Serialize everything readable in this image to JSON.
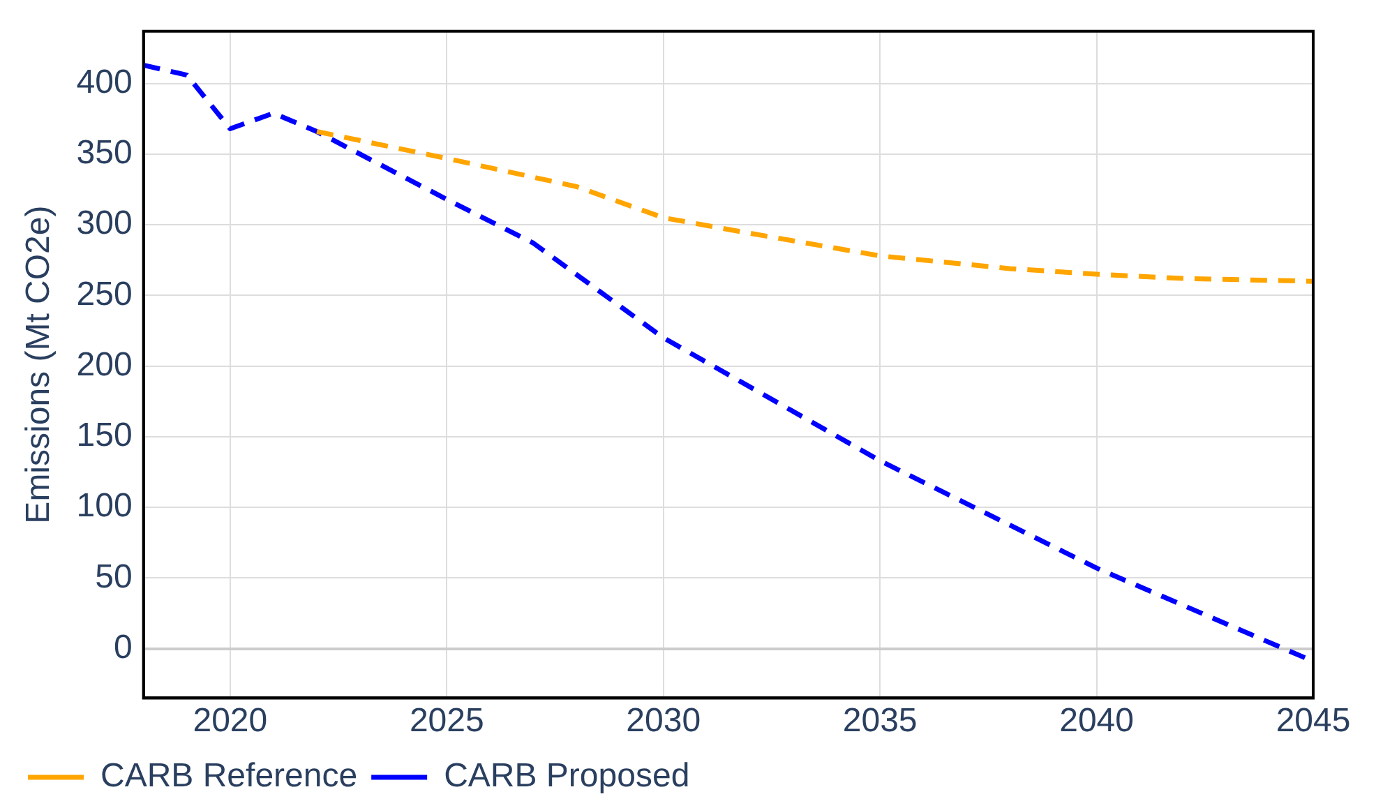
{
  "chart_data": {
    "type": "line",
    "ylabel": "Emissions (Mt CO2e)",
    "xlim": [
      2018,
      2045
    ],
    "xticks": [
      2020,
      2025,
      2030,
      2035,
      2040,
      2045
    ],
    "ylim": [
      -35,
      437
    ],
    "yticks": [
      0,
      50,
      100,
      150,
      200,
      250,
      300,
      350,
      400
    ],
    "grid": true,
    "legend": "bottom left",
    "line_style": "dashed",
    "marker": "none",
    "series": [
      {
        "name": "CARB Reference",
        "color": "#ffa500",
        "x": [
          2022,
          2025,
          2028,
          2030,
          2032,
          2035,
          2038,
          2040,
          2042,
          2045
        ],
        "values": [
          366,
          347,
          327,
          305,
          294,
          278,
          269,
          265,
          262,
          260
        ]
      },
      {
        "name": "CARB Proposed",
        "color": "#0000ff",
        "x": [
          2018,
          2019,
          2020,
          2021,
          2022,
          2025,
          2027,
          2030,
          2035,
          2040,
          2045
        ],
        "values": [
          413,
          406,
          368,
          379,
          366,
          318,
          287,
          220,
          133,
          57,
          -9
        ]
      }
    ]
  }
}
